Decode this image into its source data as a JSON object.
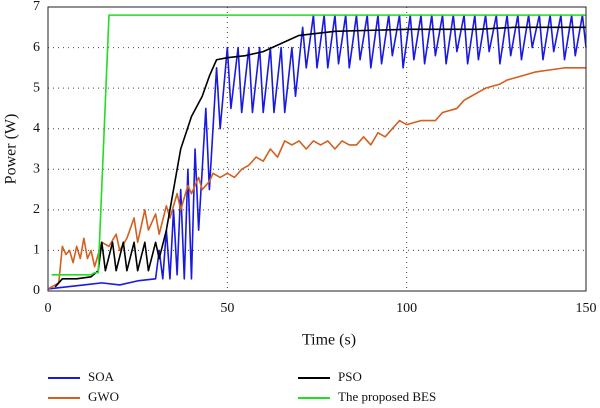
{
  "chart_data": {
    "type": "line",
    "xlabel": "Time (s)",
    "ylabel": "Power (W)",
    "xlim": [
      0,
      150
    ],
    "xticks": [
      0,
      50,
      100,
      150
    ],
    "ylim": [
      0,
      7
    ],
    "yticks": [
      0,
      1,
      2,
      3,
      4,
      5,
      6,
      7
    ],
    "grid": true,
    "legend": "bottom",
    "series": [
      {
        "name": "SOA",
        "color": "#1a1adf",
        "x": [
          0,
          5,
          10,
          15,
          20,
          25,
          30,
          31,
          32,
          33,
          34,
          35,
          36,
          37,
          38,
          39,
          40,
          41,
          42,
          44,
          45,
          47,
          48,
          50,
          51,
          53,
          54,
          56,
          57,
          59,
          60,
          62,
          63,
          65,
          66,
          68,
          69,
          71,
          72,
          74,
          75,
          77,
          78,
          80,
          81,
          83,
          84,
          86,
          87,
          89,
          90,
          92,
          93,
          95,
          96,
          98,
          99,
          101,
          102,
          104,
          105,
          107,
          108,
          110,
          111,
          113,
          114,
          116,
          117,
          119,
          120,
          122,
          123,
          125,
          126,
          128,
          129,
          131,
          132,
          134,
          135,
          137,
          138,
          140,
          141,
          143,
          144,
          146,
          147,
          149,
          150
        ],
        "values": [
          0.05,
          0.1,
          0.15,
          0.2,
          0.15,
          0.25,
          0.3,
          1.0,
          0.3,
          1.5,
          0.3,
          2.0,
          0.4,
          2.5,
          0.3,
          3.0,
          0.3,
          3.5,
          1.5,
          4.5,
          2.5,
          5.5,
          4.0,
          6.0,
          4.5,
          6.0,
          4.4,
          6.0,
          4.4,
          6.0,
          4.4,
          6.0,
          4.4,
          6.0,
          4.4,
          6.0,
          4.8,
          6.5,
          5.5,
          6.8,
          5.5,
          6.8,
          5.5,
          6.8,
          5.6,
          6.8,
          5.5,
          6.8,
          5.7,
          6.8,
          5.5,
          6.8,
          5.6,
          6.8,
          5.8,
          6.8,
          5.5,
          6.8,
          5.7,
          6.8,
          5.6,
          6.8,
          5.8,
          6.8,
          5.6,
          6.8,
          5.9,
          6.8,
          5.6,
          6.8,
          5.7,
          6.8,
          5.9,
          6.8,
          5.6,
          6.8,
          5.8,
          6.8,
          5.7,
          6.8,
          6.0,
          6.8,
          5.7,
          6.8,
          5.9,
          6.8,
          5.7,
          6.8,
          5.8,
          6.8,
          6.0
        ]
      },
      {
        "name": "GWO",
        "color": "#d2601e",
        "x": [
          0,
          3,
          4,
          5,
          6,
          7,
          8,
          9,
          10,
          11,
          12,
          13,
          15,
          17,
          19,
          20,
          22,
          24,
          25,
          27,
          28,
          30,
          31,
          33,
          34,
          36,
          37,
          39,
          40,
          42,
          43,
          45,
          46,
          48,
          50,
          52,
          54,
          56,
          58,
          60,
          62,
          64,
          66,
          68,
          70,
          72,
          74,
          76,
          78,
          80,
          82,
          84,
          86,
          88,
          90,
          92,
          94,
          96,
          98,
          100,
          104,
          108,
          110,
          114,
          116,
          118,
          120,
          122,
          126,
          128,
          132,
          136,
          140,
          144,
          148,
          150
        ],
        "values": [
          0.05,
          0.2,
          1.1,
          0.9,
          1.0,
          0.7,
          1.1,
          0.8,
          1.3,
          0.8,
          1.0,
          0.6,
          1.2,
          1.1,
          1.4,
          1.0,
          1.3,
          1.8,
          1.2,
          2.0,
          1.5,
          1.9,
          1.4,
          2.1,
          1.8,
          2.4,
          2.0,
          2.6,
          2.4,
          2.8,
          2.5,
          2.7,
          2.9,
          2.8,
          2.9,
          2.8,
          3.0,
          3.1,
          3.3,
          3.2,
          3.5,
          3.3,
          3.7,
          3.6,
          3.7,
          3.5,
          3.7,
          3.6,
          3.7,
          3.5,
          3.7,
          3.6,
          3.6,
          3.8,
          3.6,
          3.9,
          3.8,
          4.0,
          4.2,
          4.1,
          4.2,
          4.2,
          4.4,
          4.5,
          4.7,
          4.8,
          4.9,
          5.0,
          5.1,
          5.2,
          5.3,
          5.4,
          5.45,
          5.5,
          5.5,
          5.5
        ]
      },
      {
        "name": "PSO",
        "color": "#000000",
        "x": [
          2,
          4,
          8,
          12,
          14,
          15,
          16,
          18,
          19,
          21,
          22,
          24,
          25,
          27,
          28,
          30,
          31,
          33,
          35,
          37,
          40,
          43,
          45,
          47,
          50,
          55,
          60,
          65,
          70,
          80,
          100,
          120,
          130,
          150
        ],
        "values": [
          0.1,
          0.3,
          0.3,
          0.35,
          0.5,
          1.2,
          0.5,
          1.2,
          0.5,
          1.2,
          0.5,
          1.2,
          0.5,
          1.2,
          0.5,
          1.2,
          0.8,
          1.5,
          2.5,
          3.5,
          4.3,
          4.8,
          5.3,
          5.7,
          5.75,
          5.8,
          5.9,
          6.1,
          6.3,
          6.4,
          6.45,
          6.45,
          6.5,
          6.5
        ]
      },
      {
        "name": "The proposed BES",
        "color": "#22dd22",
        "x": [
          1,
          12,
          13,
          14,
          17,
          150
        ],
        "values": [
          0.4,
          0.4,
          0.45,
          0.45,
          6.8,
          6.8
        ]
      }
    ]
  }
}
